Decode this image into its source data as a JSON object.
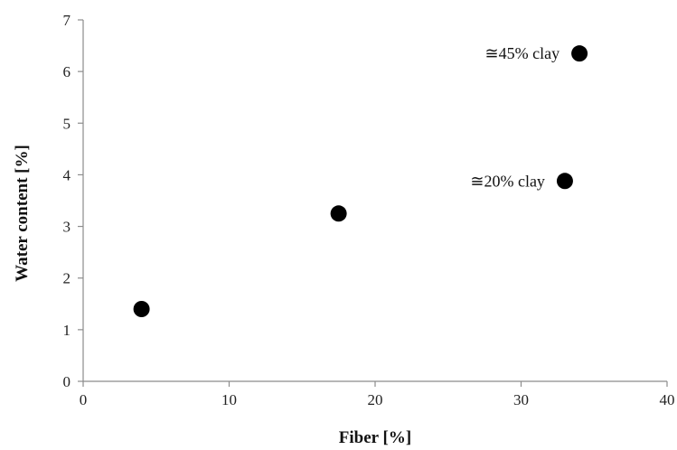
{
  "chart_data": {
    "type": "scatter",
    "title": "",
    "xlabel": "Fiber [%]",
    "ylabel": "Water content  [%]",
    "xlim": [
      0,
      40
    ],
    "ylim": [
      0,
      7
    ],
    "xticks": [
      0,
      10,
      20,
      30,
      40
    ],
    "yticks": [
      0,
      1,
      2,
      3,
      4,
      5,
      6,
      7
    ],
    "grid": false,
    "legend": "none",
    "marker_color": "#000000",
    "points": [
      {
        "x": 4,
        "y": 1.4
      },
      {
        "x": 17.5,
        "y": 3.25
      },
      {
        "x": 33,
        "y": 3.88
      },
      {
        "x": 34,
        "y": 6.35
      }
    ],
    "annotations": [
      {
        "text": "≅45% clay",
        "x": 34,
        "y": 6.35
      },
      {
        "text": "≅20% clay",
        "x": 33,
        "y": 3.88
      }
    ]
  }
}
